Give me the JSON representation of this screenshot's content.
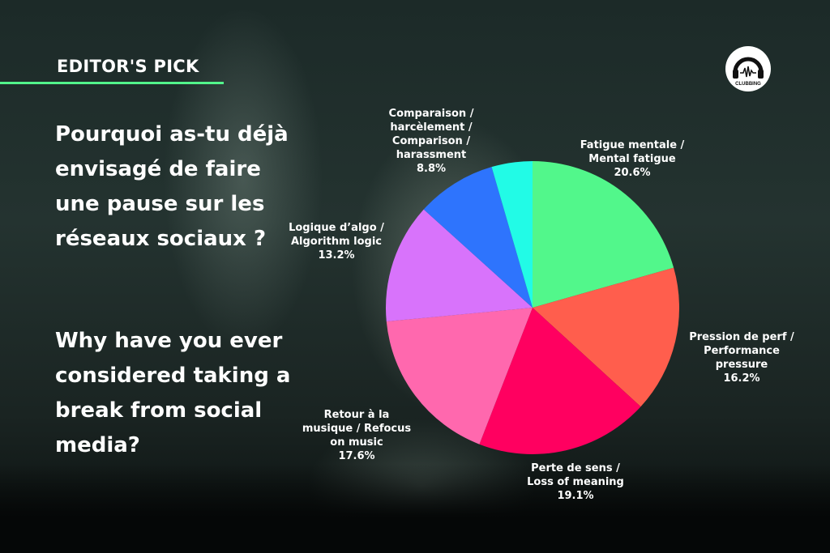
{
  "header": {
    "badge": "EDITOR'S PICK",
    "accent_color": "#52f58b",
    "logo_text": "CLUBBING TV"
  },
  "question": {
    "fr": "Pourquoi as-tu déjà envisagé de faire une pause sur les réseaux sociaux ?",
    "en": "Why have you ever considered taking a break from social media?"
  },
  "chart_data": {
    "type": "pie",
    "start": "top, clockwise",
    "slices": [
      {
        "label_lines": [
          "Fatigue mentale /",
          "Mental fatigue"
        ],
        "value": 20.6,
        "value_label": "20.6%",
        "color": "#52f78b"
      },
      {
        "label_lines": [
          "Pression de perf /",
          "Performance",
          "pressure"
        ],
        "value": 16.2,
        "value_label": "16.2%",
        "color": "#ff5e4d"
      },
      {
        "label_lines": [
          "Perte de sens /",
          "Loss of meaning"
        ],
        "value": 19.1,
        "value_label": "19.1%",
        "color": "#ff0060"
      },
      {
        "label_lines": [
          "Retour à la",
          "musique / Refocus",
          "on music"
        ],
        "value": 17.6,
        "value_label": "17.6%",
        "color": "#ff68ae"
      },
      {
        "label_lines": [
          "Logique d’algo /",
          "Algorithm logic"
        ],
        "value": 13.2,
        "value_label": "13.2%",
        "color": "#d873fb"
      },
      {
        "label_lines": [
          "Comparaison /",
          "harcèlement /",
          "Comparison /",
          "harassment"
        ],
        "value": 8.8,
        "value_label": "8.8%",
        "color": "#2e74fd"
      },
      {
        "label_lines": [],
        "value": 4.5,
        "value_label": "",
        "color": "#22fbe6"
      }
    ]
  }
}
